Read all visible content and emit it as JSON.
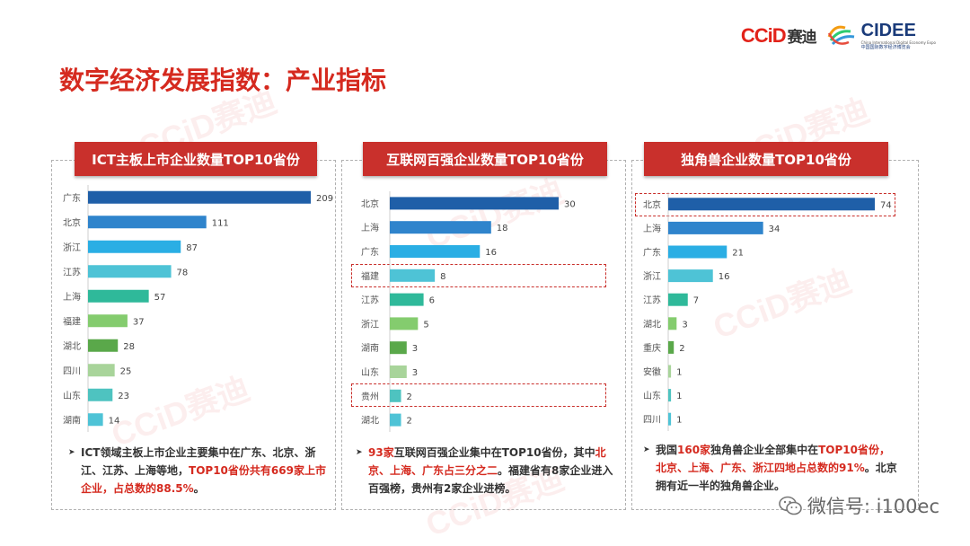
{
  "header": {
    "ccid_logo_text": "CCiD",
    "ccid_cn": "赛迪",
    "cidee_logo_text": "CIDEE",
    "cidee_en": "China International Digital Economy Expo",
    "cidee_cn": "中国国际数字经济博览会",
    "title": "数字经济发展指数：产业指标"
  },
  "chart_data": [
    {
      "type": "bar",
      "title": "ICT主板上市企业数量TOP10省份",
      "categories": [
        "广东",
        "北京",
        "浙江",
        "江苏",
        "上海",
        "福建",
        "湖北",
        "四川",
        "山东",
        "湖南"
      ],
      "values": [
        209,
        111,
        87,
        78,
        57,
        37,
        28,
        25,
        23,
        14
      ],
      "colors": [
        "#1f5fa8",
        "#2f84cc",
        "#2aaee4",
        "#4ec3d6",
        "#2fb99a",
        "#84cc6e",
        "#5aa84a",
        "#a8d49a",
        "#4ec3c0",
        "#4ec3d6"
      ],
      "xlim": [
        0,
        209
      ]
    },
    {
      "type": "bar",
      "title": "互联网百强企业数量TOP10省份",
      "categories": [
        "北京",
        "上海",
        "广东",
        "福建",
        "江苏",
        "浙江",
        "湖南",
        "山东",
        "贵州",
        "湖北"
      ],
      "values": [
        30,
        18,
        16,
        8,
        6,
        5,
        3,
        3,
        2,
        2
      ],
      "colors": [
        "#1f5fa8",
        "#2f84cc",
        "#2aaee4",
        "#4ec3d6",
        "#2fb99a",
        "#84cc6e",
        "#5aa84a",
        "#a8d49a",
        "#4ec3c0",
        "#4ec3d6"
      ],
      "highlighted": [
        "福建",
        "贵州"
      ],
      "xlim": [
        0,
        30
      ]
    },
    {
      "type": "bar",
      "title": "独角兽企业数量TOP10省份",
      "categories": [
        "北京",
        "上海",
        "广东",
        "浙江",
        "江苏",
        "湖北",
        "重庆",
        "安徽",
        "山东",
        "四川"
      ],
      "values": [
        74,
        34,
        21,
        16,
        7,
        3,
        2,
        1,
        1,
        1
      ],
      "colors": [
        "#1f5fa8",
        "#2f84cc",
        "#2aaee4",
        "#4ec3d6",
        "#2fb99a",
        "#84cc6e",
        "#5aa84a",
        "#a8d49a",
        "#4ec3c0",
        "#4ec3d6"
      ],
      "highlighted": [
        "北京"
      ],
      "xlim": [
        0,
        74
      ]
    }
  ],
  "notes": [
    {
      "p1": "ICT领域主板上市企业主要集中在广东、北京、浙江、江苏、上海等地，",
      "r1": "TOP10省份共有669家上市企业，占总数的88.5%",
      "p2": "。"
    },
    {
      "r1": "93家",
      "p1": "互联网百强企业集中在TOP10省份，其中",
      "r2": "北京、上海、广东占三分之二",
      "p2": "。福建省有8家企业进入百强榜，贵州有2家企业进榜。"
    },
    {
      "p1": "我国",
      "r1": "160家",
      "p2": "独角兽企业全部集中在",
      "r2": "TOP10省份，北京、上海、广东、浙江四地占总数的91%",
      "p3": "。北京拥有近一半的独角兽企业。"
    }
  ],
  "watermark": "CCiD赛迪",
  "footer": {
    "wechat": "微信号: i100ec"
  }
}
